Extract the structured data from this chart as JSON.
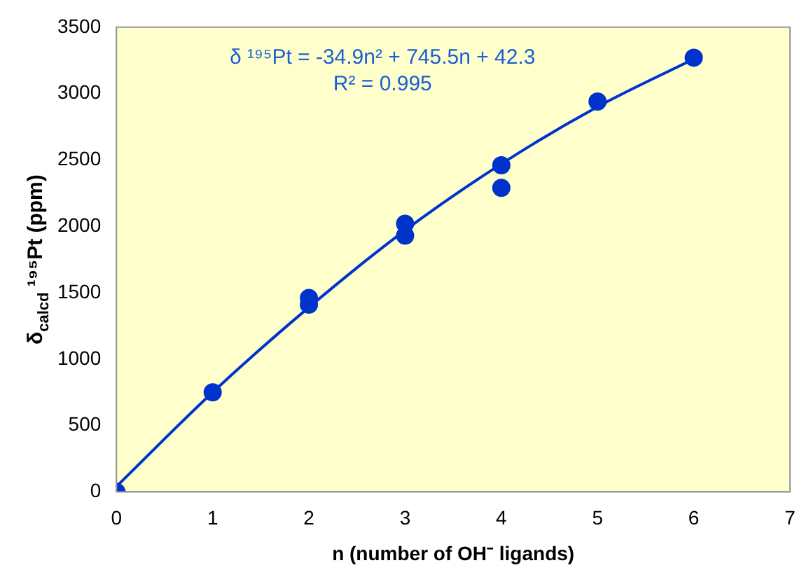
{
  "chart_data": {
    "type": "scatter",
    "xlabel": "n (number of OH⁻ ligands)",
    "ylabel": "δ$_{calcd}$ ¹⁹⁵Pt (ppm)",
    "xlim": [
      0,
      7
    ],
    "xticks": [
      0,
      1,
      2,
      3,
      4,
      5,
      6,
      7
    ],
    "ylim": [
      0,
      3500
    ],
    "yticks": [
      0,
      500,
      1000,
      1500,
      2000,
      2500,
      3000,
      3500
    ],
    "grid": false,
    "marker": "circle",
    "series": [
      {
        "type": "scatter",
        "color": "#0033cc",
        "x": [
          0,
          1,
          2,
          2,
          3,
          3,
          4,
          4,
          5,
          6
        ],
        "values": [
          0,
          750,
          1460,
          1410,
          2020,
          1930,
          2460,
          2290,
          2940,
          3270
        ]
      },
      {
        "type": "line",
        "color": "#0033cc",
        "marker": "none",
        "x": [
          0,
          1,
          2,
          3,
          4,
          5,
          6
        ],
        "values": [
          40,
          750,
          1390,
          1970,
          2470,
          2900,
          3260
        ]
      }
    ],
    "annotations": [
      "δ ¹⁹⁵Pt = -34.9n² + 745.5n + 42.3",
      "R² = 0.995"
    ]
  }
}
